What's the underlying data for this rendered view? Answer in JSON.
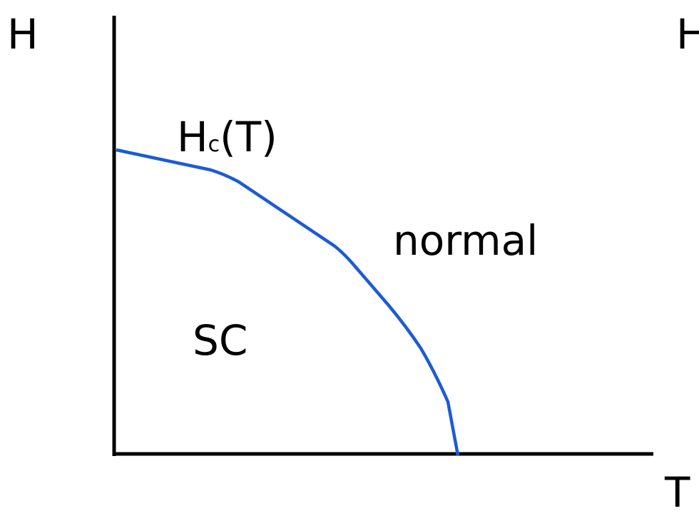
{
  "labels": {
    "y_axis": "H",
    "x_axis": "T",
    "curve": {
      "main": "H",
      "subscript": "c",
      "suffix": "(T)"
    },
    "normal_region": "normal",
    "sc_region": "SC",
    "right_axis": "H"
  }
}
